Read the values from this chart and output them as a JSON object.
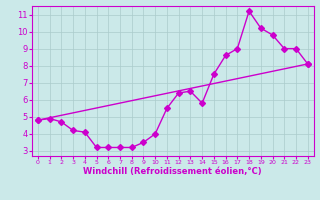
{
  "xlabel": "Windchill (Refroidissement éolien,°C)",
  "xlim": [
    -0.5,
    23.5
  ],
  "ylim": [
    2.7,
    11.5
  ],
  "xticks": [
    0,
    1,
    2,
    3,
    4,
    5,
    6,
    7,
    8,
    9,
    10,
    11,
    12,
    13,
    14,
    15,
    16,
    17,
    18,
    19,
    20,
    21,
    22,
    23
  ],
  "yticks": [
    3,
    4,
    5,
    6,
    7,
    8,
    9,
    10,
    11
  ],
  "bg_color": "#cbe9e9",
  "line_color": "#cc00cc",
  "grid_color": "#aacccc",
  "line1_x": [
    0,
    1,
    2,
    3,
    4,
    5,
    6,
    7,
    8,
    9,
    10,
    11,
    12,
    13,
    14,
    15,
    16,
    17,
    18,
    19,
    20,
    21,
    22,
    23
  ],
  "line1_y": [
    4.8,
    4.9,
    4.7,
    4.2,
    4.1,
    3.2,
    3.2,
    3.2,
    3.2,
    3.5,
    4.0,
    5.5,
    6.4,
    6.5,
    5.8,
    7.5,
    8.6,
    9.0,
    11.2,
    10.2,
    9.8,
    9.0,
    9.0,
    8.1
  ],
  "line2_x": [
    0,
    23
  ],
  "line2_y": [
    4.8,
    8.1
  ],
  "marker": "D",
  "marker_size": 3,
  "linewidth": 1.0,
  "xlabel_fontsize": 6.0,
  "xtick_fontsize": 4.5,
  "ytick_fontsize": 6.0
}
